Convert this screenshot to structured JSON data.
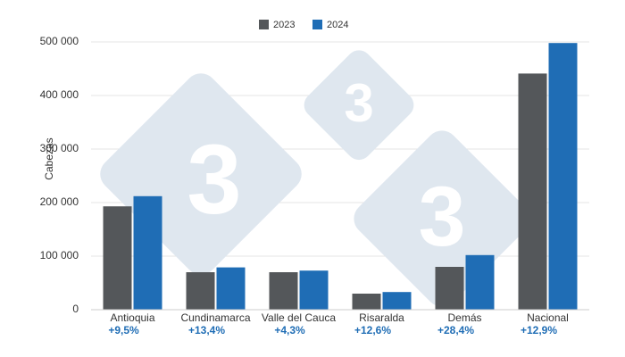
{
  "chart_data": {
    "type": "bar",
    "y_label": "Cabezas",
    "categories": [
      "Antioquia",
      "Cundinamarca",
      "Valle del Cauca",
      "Risaralda",
      "Demás",
      "Nacional"
    ],
    "change_labels": [
      "+9,5%",
      "+13,4%",
      "+4,3%",
      "+12,6%",
      "+28,4%",
      "+12,9%"
    ],
    "series": [
      {
        "name": "2023",
        "color": "#54575a",
        "values": [
          193000,
          70000,
          70000,
          30000,
          80000,
          441000
        ]
      },
      {
        "name": "2024",
        "color": "#1f6db5",
        "values": [
          212000,
          79000,
          73000,
          33000,
          102000,
          498000
        ]
      }
    ],
    "ylim": [
      0,
      500000
    ],
    "yticks": [
      0,
      {
        "value": 100000,
        "label": "100 000"
      },
      {
        "value": 200000,
        "label": "200 000"
      },
      {
        "value": 300000,
        "label": "300 000"
      },
      {
        "value": 400000,
        "label": "400 000"
      },
      {
        "value": 500000,
        "label": "500 000"
      }
    ],
    "grid": true,
    "legend": "top",
    "watermark": "3"
  }
}
